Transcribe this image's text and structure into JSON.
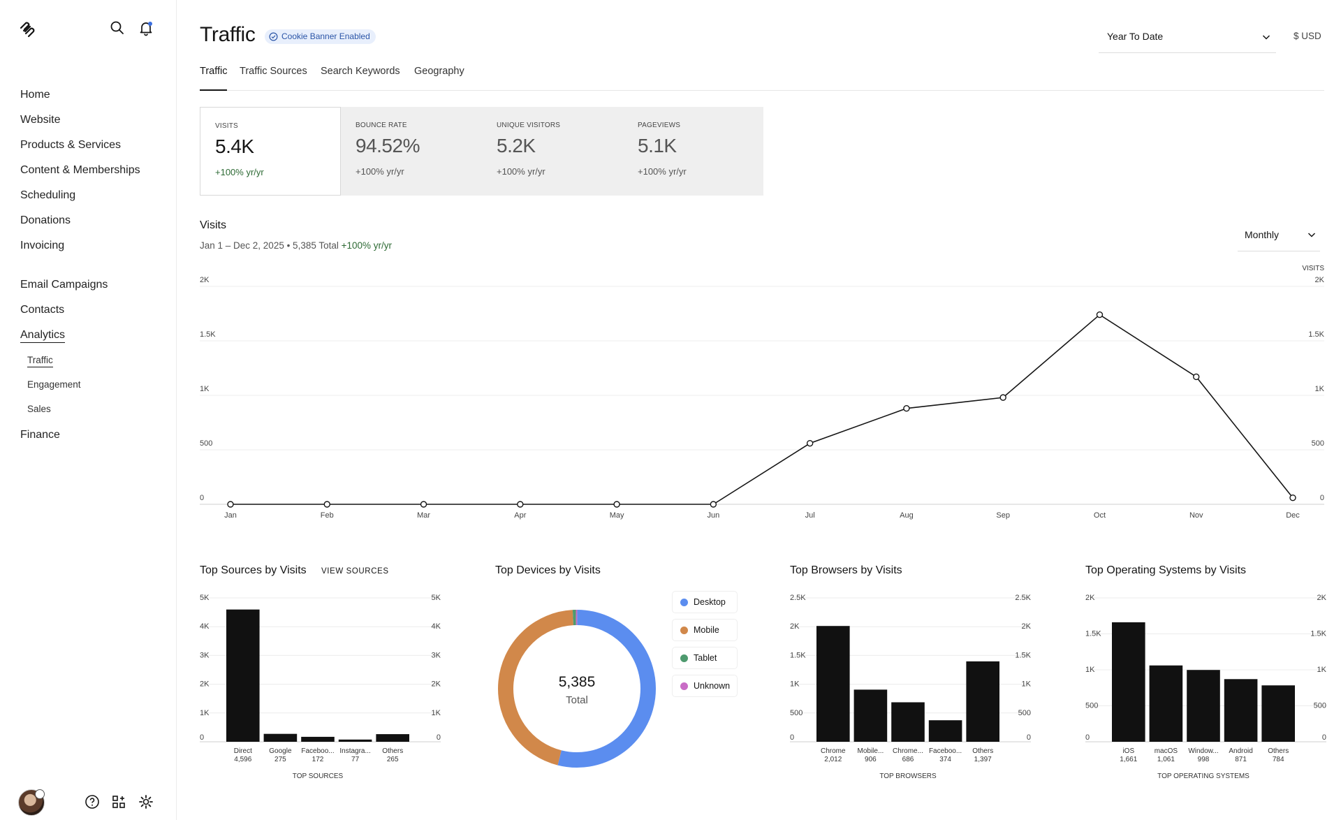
{
  "sidebar": {
    "nav": [
      "Home",
      "Website",
      "Products & Services",
      "Content & Memberships",
      "Scheduling",
      "Donations",
      "Invoicing"
    ],
    "nav2": [
      "Email Campaigns",
      "Contacts",
      "Analytics"
    ],
    "analytics_sub": [
      "Traffic",
      "Engagement",
      "Sales"
    ],
    "finance": "Finance"
  },
  "header": {
    "title": "Traffic",
    "badge": "Cookie Banner Enabled",
    "date_range": "Year To Date",
    "currency": "$ USD"
  },
  "tabs": [
    "Traffic",
    "Traffic Sources",
    "Search Keywords",
    "Geography"
  ],
  "metrics": [
    {
      "label": "VISITS",
      "value": "5.4K",
      "delta": "+100% yr/yr"
    },
    {
      "label": "BOUNCE RATE",
      "value": "94.52%",
      "delta": "+100% yr/yr"
    },
    {
      "label": "UNIQUE VISITORS",
      "value": "5.2K",
      "delta": "+100% yr/yr"
    },
    {
      "label": "PAGEVIEWS",
      "value": "5.1K",
      "delta": "+100% yr/yr"
    }
  ],
  "visits": {
    "title": "Visits",
    "subtitle": "Jan 1 – Dec 2, 2025 • 5,385 Total",
    "subtitle_delta": "+100% yr/yr",
    "period": "Monthly",
    "axis_title": "VISITS"
  },
  "sections": {
    "sources": "Top Sources by Visits",
    "view_sources": "VIEW SOURCES",
    "devices": "Top Devices by Visits",
    "browsers": "Top Browsers by Visits",
    "os": "Top Operating Systems by Visits"
  },
  "donut": {
    "total": "5,385",
    "total_label": "Total",
    "legend": [
      "Desktop",
      "Mobile",
      "Tablet",
      "Unknown"
    ],
    "colors": {
      "desktop": "#5b8def",
      "mobile": "#d1884a",
      "tablet": "#4e9a6e",
      "unknown": "#c96cc6"
    }
  },
  "chart_data": [
    {
      "type": "line",
      "title": "Visits",
      "x": [
        "Jan",
        "Feb",
        "Mar",
        "Apr",
        "May",
        "Jun",
        "Jul",
        "Aug",
        "Sep",
        "Oct",
        "Nov",
        "Dec"
      ],
      "values": [
        0,
        0,
        0,
        0,
        0,
        0,
        560,
        880,
        980,
        1740,
        1170,
        60
      ],
      "yticks": [
        "0",
        "500",
        "1K",
        "1.5K",
        "2K"
      ],
      "ylim": [
        0,
        2000
      ],
      "grid": true
    },
    {
      "type": "bar",
      "title": "Top Sources by Visits",
      "xlabel": "TOP SOURCES",
      "categories": [
        "Direct",
        "Google",
        "Faceboo...",
        "Instagra...",
        "Others"
      ],
      "values": [
        4596,
        275,
        172,
        77,
        265
      ],
      "value_labels": [
        "4,596",
        "275",
        "172",
        "77",
        "265"
      ],
      "yticks": [
        "0",
        "1K",
        "2K",
        "3K",
        "4K",
        "5K"
      ],
      "ylim": [
        0,
        5000
      ]
    },
    {
      "type": "pie",
      "title": "Top Devices by Visits",
      "categories": [
        "Desktop",
        "Mobile",
        "Tablet",
        "Unknown"
      ],
      "values": [
        2900,
        2435,
        35,
        15
      ]
    },
    {
      "type": "bar",
      "title": "Top Browsers by Visits",
      "xlabel": "TOP BROWSERS",
      "categories": [
        "Chrome",
        "Mobile...",
        "Chrome...",
        "Faceboo...",
        "Others"
      ],
      "values": [
        2012,
        906,
        686,
        374,
        1397
      ],
      "value_labels": [
        "2,012",
        "906",
        "686",
        "374",
        "1,397"
      ],
      "yticks": [
        "0",
        "500",
        "1K",
        "1.5K",
        "2K",
        "2.5K"
      ],
      "ylim": [
        0,
        2500
      ]
    },
    {
      "type": "bar",
      "title": "Top Operating Systems by Visits",
      "xlabel": "TOP OPERATING SYSTEMS",
      "categories": [
        "iOS",
        "macOS",
        "Window...",
        "Android",
        "Others"
      ],
      "values": [
        1661,
        1061,
        998,
        871,
        784
      ],
      "value_labels": [
        "1,661",
        "1,061",
        "998",
        "871",
        "784"
      ],
      "yticks": [
        "0",
        "500",
        "1K",
        "1.5K",
        "2K"
      ],
      "ylim": [
        0,
        2000
      ]
    }
  ]
}
